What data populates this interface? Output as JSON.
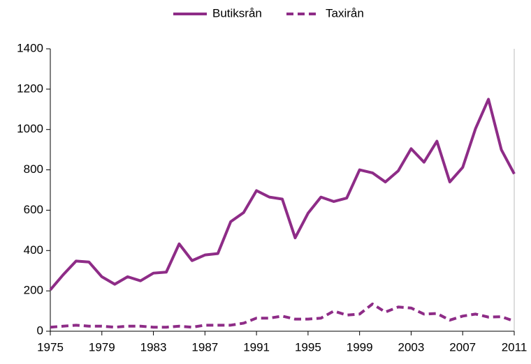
{
  "chart_data": {
    "type": "line",
    "x": [
      1975,
      1976,
      1977,
      1978,
      1979,
      1980,
      1981,
      1982,
      1983,
      1984,
      1985,
      1986,
      1987,
      1988,
      1989,
      1990,
      1991,
      1992,
      1993,
      1994,
      1995,
      1996,
      1997,
      1998,
      1999,
      2000,
      2001,
      2002,
      2003,
      2004,
      2005,
      2006,
      2007,
      2008,
      2009,
      2010,
      2011
    ],
    "series": [
      {
        "name": "Butiksrån",
        "color": "#8e2c87",
        "dash": false,
        "values": [
          205,
          280,
          348,
          343,
          270,
          233,
          270,
          250,
          288,
          293,
          433,
          350,
          378,
          385,
          543,
          588,
          697,
          665,
          655,
          463,
          585,
          665,
          643,
          660,
          800,
          785,
          740,
          795,
          905,
          838,
          942,
          740,
          812,
          1005,
          1150,
          900,
          780
        ]
      },
      {
        "name": "Taxirån",
        "color": "#8e2c87",
        "dash": true,
        "values": [
          20,
          25,
          30,
          25,
          25,
          20,
          25,
          25,
          20,
          20,
          25,
          20,
          30,
          30,
          30,
          40,
          65,
          65,
          75,
          60,
          60,
          65,
          100,
          80,
          85,
          135,
          95,
          120,
          115,
          85,
          88,
          55,
          75,
          85,
          70,
          72,
          50
        ]
      }
    ],
    "xlim": [
      1975,
      2011
    ],
    "xticks": [
      1975,
      1979,
      1983,
      1987,
      1991,
      1995,
      1999,
      2003,
      2007,
      2011
    ],
    "ylim": [
      0,
      1400
    ],
    "yticks": [
      0,
      200,
      400,
      600,
      800,
      1000,
      1200,
      1400
    ],
    "legend": "top"
  }
}
